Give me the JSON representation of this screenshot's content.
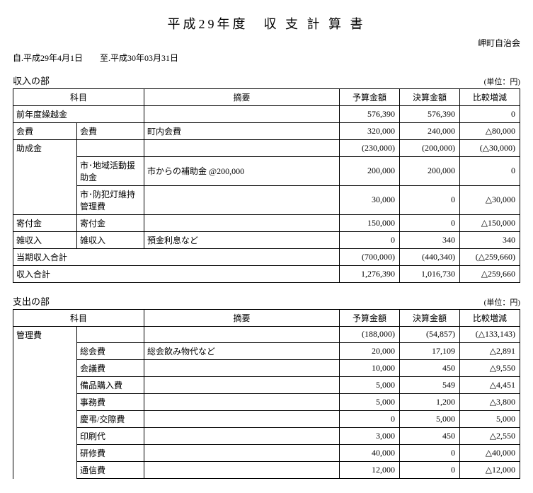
{
  "title": "平成29年度　収 支 計 算 書",
  "org": "岬町自治会",
  "period": "自.平成29年4月1日　　至.平成30年03月31日",
  "unit": "(単位：円)",
  "headers": {
    "kamoku": "科目",
    "desc": "摘要",
    "budget": "予算金額",
    "settle": "決算金額",
    "diff": "比較増減"
  },
  "income": {
    "section": "収入の部",
    "rows": [
      {
        "k1": "前年度繰越金",
        "k1span": 2,
        "desc": "",
        "budget": "576,390",
        "settle": "576,390",
        "diff": "0"
      },
      {
        "k1": "会費",
        "k2": "会費",
        "desc": "町内会費",
        "budget": "320,000",
        "settle": "240,000",
        "diff": "△80,000"
      },
      {
        "k1": "助成金",
        "k1open": true,
        "k2": "",
        "desc": "",
        "budget": "(230,000)",
        "settle": "(200,000)",
        "diff": "(△30,000)"
      },
      {
        "k1cont": true,
        "k2": "市･地域活動援助金",
        "desc": "市からの補助金 @200,000",
        "budget": "200,000",
        "settle": "200,000",
        "diff": "0"
      },
      {
        "k1cont": true,
        "k1close": true,
        "k2": "市･防犯灯維持管理費",
        "desc": "",
        "budget": "30,000",
        "settle": "0",
        "diff": "△30,000"
      },
      {
        "k1": "寄付金",
        "k2": "寄付金",
        "desc": "",
        "budget": "150,000",
        "settle": "0",
        "diff": "△150,000"
      },
      {
        "k1": "雑収入",
        "k2": "雑収入",
        "desc": "預金利息など",
        "budget": "0",
        "settle": "340",
        "diff": "340"
      },
      {
        "k1": "当期収入合計",
        "k1span": 3,
        "budget": "(700,000)",
        "settle": "(440,340)",
        "diff": "(△259,660)"
      },
      {
        "k1": "収入合計",
        "k1span": 3,
        "budget": "1,276,390",
        "settle": "1,016,730",
        "diff": "△259,660"
      }
    ]
  },
  "expense": {
    "section": "支出の部",
    "rows": [
      {
        "k1": "管理費",
        "k1open": true,
        "k2": "",
        "desc": "",
        "budget": "(188,000)",
        "settle": "(54,857)",
        "diff": "(△133,143)"
      },
      {
        "k1cont": true,
        "k2": "総会費",
        "desc": "総会飲み物代など",
        "budget": "20,000",
        "settle": "17,109",
        "diff": "△2,891"
      },
      {
        "k1cont": true,
        "k2": "会議費",
        "desc": "",
        "budget": "10,000",
        "settle": "450",
        "diff": "△9,550"
      },
      {
        "k1cont": true,
        "k2": "備品購入費",
        "desc": "",
        "budget": "5,000",
        "settle": "549",
        "diff": "△4,451"
      },
      {
        "k1cont": true,
        "k2": "事務費",
        "desc": "",
        "budget": "5,000",
        "settle": "1,200",
        "diff": "△3,800"
      },
      {
        "k1cont": true,
        "k2": "慶弔/交際費",
        "desc": "",
        "budget": "0",
        "settle": "5,000",
        "diff": "5,000"
      },
      {
        "k1cont": true,
        "k2": "印刷代",
        "desc": "",
        "budget": "3,000",
        "settle": "450",
        "diff": "△2,550"
      },
      {
        "k1cont": true,
        "k2": "研修費",
        "desc": "",
        "budget": "40,000",
        "settle": "0",
        "diff": "△40,000"
      },
      {
        "k1cont": true,
        "k2": "通信費",
        "desc": "",
        "budget": "12,000",
        "settle": "0",
        "diff": "△12,000"
      }
    ]
  }
}
